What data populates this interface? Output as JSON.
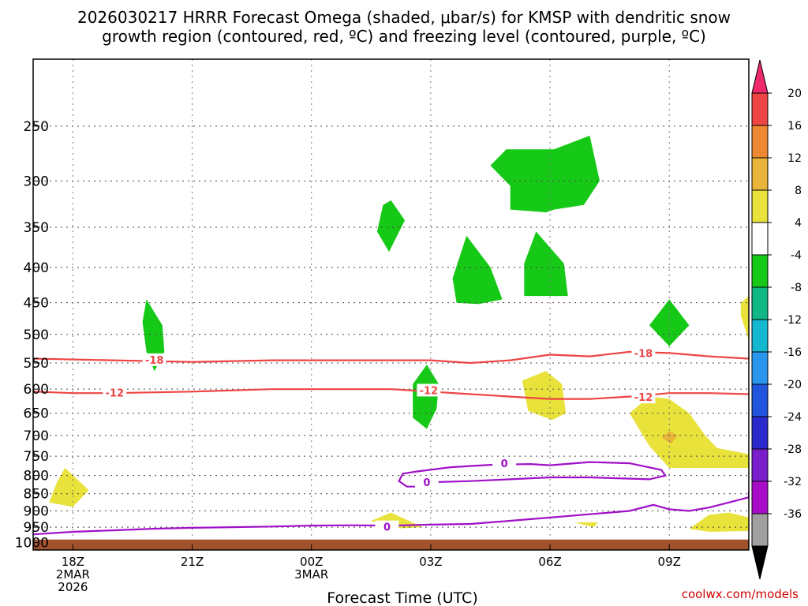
{
  "chart_data": {
    "type": "time-height cross-section",
    "title_line1": "2026030217 HRRR Forecast Omega (shaded, μbar/s) for KMSP with dendritic snow",
    "title_line2": "growth region (contoured, red, ºC) and freezing level (contoured, purple, ºC)",
    "xlabel": "Forecast Time (UTC)",
    "credit": "coolwx.com/models",
    "x_ticks": [
      {
        "hour": 0,
        "lines": [
          "18Z",
          "2MAR",
          "2026"
        ]
      },
      {
        "hour": 3,
        "lines": [
          "21Z"
        ]
      },
      {
        "hour": 6,
        "lines": [
          "00Z",
          "3MAR"
        ]
      },
      {
        "hour": 9,
        "lines": [
          "03Z"
        ]
      },
      {
        "hour": 12,
        "lines": [
          "06Z"
        ]
      },
      {
        "hour": 15,
        "lines": [
          "09Z"
        ]
      }
    ],
    "xlim_hours": [
      -1,
      17
    ],
    "y_ticks": [
      250,
      300,
      350,
      400,
      450,
      500,
      550,
      600,
      650,
      700,
      750,
      800,
      850,
      900,
      950,
      1000
    ],
    "ylim_hpa": [
      1025,
      200
    ],
    "colorbar": {
      "labels": [
        "20",
        "16",
        "12",
        "8",
        "4",
        "-4",
        "-8",
        "-12",
        "-16",
        "-20",
        "-24",
        "-28",
        "-32",
        "-36"
      ],
      "colors": [
        "#ee2a6a",
        "#ee4444",
        "#ee8833",
        "#e8b53a",
        "#e8e23a",
        "#ffffff",
        "#16c916",
        "#11b886",
        "#14b8d0",
        "#2a96ee",
        "#2255dd",
        "#2a2acc",
        "#7a1ecc",
        "#a80cc8",
        "#a0a0a0",
        "#000000"
      ]
    },
    "contours": [
      {
        "name": "-18",
        "color": "#ee4444",
        "label": "-18",
        "points": [
          [
            -1,
            542
          ],
          [
            1,
            545
          ],
          [
            3,
            548
          ],
          [
            5,
            545
          ],
          [
            7,
            545
          ],
          [
            9,
            545
          ],
          [
            10,
            550
          ],
          [
            11,
            545
          ],
          [
            12,
            535
          ],
          [
            13,
            538
          ],
          [
            14,
            530
          ],
          [
            15,
            532
          ],
          [
            16,
            538
          ],
          [
            17,
            542
          ]
        ],
        "labels_at": [
          [
            2.05,
            544
          ],
          [
            14.35,
            532
          ]
        ]
      },
      {
        "name": "-12",
        "color": "#ee4444",
        "label": "-12",
        "points": [
          [
            -1,
            605
          ],
          [
            0,
            608
          ],
          [
            1,
            608
          ],
          [
            3,
            605
          ],
          [
            5,
            600
          ],
          [
            7,
            600
          ],
          [
            8,
            600
          ],
          [
            9,
            605
          ],
          [
            10,
            610
          ],
          [
            11,
            615
          ],
          [
            12,
            620
          ],
          [
            13,
            620
          ],
          [
            14,
            615
          ],
          [
            15,
            608
          ],
          [
            16,
            608
          ],
          [
            17,
            610
          ]
        ],
        "labels_at": [
          [
            1.05,
            607
          ],
          [
            8.95,
            602
          ],
          [
            14.35,
            616
          ]
        ]
      },
      {
        "name": "freezing-upper",
        "color": "#a010c8",
        "label": "0",
        "points": [
          [
            8.6,
            790
          ],
          [
            9.5,
            778
          ],
          [
            10.5,
            772
          ],
          [
            11.5,
            770
          ],
          [
            12.0,
            773
          ],
          [
            13,
            765
          ],
          [
            14,
            768
          ],
          [
            14.8,
            785
          ],
          [
            14.9,
            800
          ],
          [
            14.5,
            810
          ],
          [
            13,
            805
          ],
          [
            12,
            805
          ],
          [
            11,
            810
          ],
          [
            10,
            815
          ],
          [
            9,
            818
          ],
          [
            8.7,
            830
          ],
          [
            8.4,
            830
          ],
          [
            8.2,
            815
          ],
          [
            8.3,
            795
          ],
          [
            8.6,
            790
          ]
        ],
        "labels_at": [
          [
            10.85,
            768
          ],
          [
            8.9,
            818
          ]
        ]
      },
      {
        "name": "freezing-lower",
        "color": "#a010c8",
        "label": "0",
        "points": [
          [
            -1,
            973
          ],
          [
            0,
            965
          ],
          [
            1,
            960
          ],
          [
            2,
            955
          ],
          [
            3,
            952
          ],
          [
            4,
            950
          ],
          [
            5,
            948
          ],
          [
            6,
            945
          ],
          [
            7,
            944
          ],
          [
            8,
            945
          ],
          [
            9,
            942
          ],
          [
            10,
            940
          ],
          [
            11,
            930
          ],
          [
            12,
            920
          ],
          [
            13,
            910
          ],
          [
            14,
            900
          ],
          [
            14.6,
            882
          ],
          [
            15,
            895
          ],
          [
            15.5,
            900
          ],
          [
            16,
            890
          ],
          [
            16.5,
            875
          ],
          [
            17,
            860
          ],
          [
            17,
            845
          ],
          [
            17.1,
            840
          ]
        ],
        "labels_at": [
          [
            7.9,
            949
          ]
        ]
      }
    ],
    "omega_regions": [
      {
        "name": "rising-1",
        "fill": "#16c916",
        "points": [
          [
            1.85,
            445
          ],
          [
            2.25,
            485
          ],
          [
            2.3,
            530
          ],
          [
            2.05,
            565
          ],
          [
            1.85,
            530
          ],
          [
            1.75,
            480
          ],
          [
            1.85,
            445
          ]
        ]
      },
      {
        "name": "rising-2",
        "fill": "#16c916",
        "points": [
          [
            8.0,
            320
          ],
          [
            8.35,
            342
          ],
          [
            7.95,
            380
          ],
          [
            7.65,
            355
          ],
          [
            7.8,
            325
          ],
          [
            8.0,
            320
          ]
        ]
      },
      {
        "name": "rising-3",
        "fill": "#16c916",
        "points": [
          [
            9.9,
            360
          ],
          [
            10.5,
            400
          ],
          [
            10.8,
            445
          ],
          [
            10.2,
            452
          ],
          [
            9.65,
            450
          ],
          [
            9.55,
            415
          ],
          [
            9.9,
            360
          ]
        ]
      },
      {
        "name": "rising-4",
        "fill": "#16c916",
        "points": [
          [
            11.65,
            355
          ],
          [
            12.35,
            395
          ],
          [
            12.45,
            440
          ],
          [
            11.35,
            440
          ],
          [
            11.35,
            395
          ],
          [
            11.65,
            355
          ]
        ]
      },
      {
        "name": "rising-5",
        "fill": "#16c916",
        "points": [
          [
            10.5,
            285
          ],
          [
            10.9,
            270
          ],
          [
            12.1,
            270
          ],
          [
            13.0,
            258
          ],
          [
            13.25,
            300
          ],
          [
            12.85,
            325
          ],
          [
            12.1,
            330
          ],
          [
            11.9,
            333
          ],
          [
            11.0,
            330
          ],
          [
            11.0,
            305
          ],
          [
            10.5,
            285
          ]
        ]
      },
      {
        "name": "rising-6",
        "fill": "#16c916",
        "points": [
          [
            15.0,
            445
          ],
          [
            15.5,
            485
          ],
          [
            15.0,
            520
          ],
          [
            14.5,
            485
          ],
          [
            15.0,
            445
          ]
        ]
      },
      {
        "name": "rising-7",
        "fill": "#16c916",
        "points": [
          [
            8.9,
            553
          ],
          [
            9.2,
            590
          ],
          [
            9.15,
            640
          ],
          [
            8.9,
            685
          ],
          [
            8.55,
            660
          ],
          [
            8.55,
            590
          ],
          [
            8.9,
            553
          ]
        ]
      },
      {
        "name": "sinking-1",
        "fill": "#e8e23a",
        "points": [
          [
            -0.2,
            780
          ],
          [
            0.4,
            840
          ],
          [
            0.0,
            888
          ],
          [
            -0.6,
            875
          ],
          [
            -0.4,
            818
          ],
          [
            -0.2,
            780
          ]
        ]
      },
      {
        "name": "sinking-2",
        "fill": "#e8e23a",
        "points": [
          [
            11.3,
            583
          ],
          [
            11.9,
            565
          ],
          [
            12.3,
            590
          ],
          [
            12.4,
            650
          ],
          [
            12.05,
            665
          ],
          [
            11.45,
            645
          ],
          [
            11.3,
            583
          ]
        ]
      },
      {
        "name": "sinking-3",
        "fill": "#e8e23a",
        "points": [
          [
            14.0,
            650
          ],
          [
            14.5,
            615
          ],
          [
            15.0,
            620
          ],
          [
            15.5,
            650
          ],
          [
            15.9,
            700
          ],
          [
            16.2,
            730
          ],
          [
            17.0,
            745
          ],
          [
            17.0,
            780
          ],
          [
            15.0,
            780
          ],
          [
            14.5,
            725
          ],
          [
            14.0,
            650
          ]
        ]
      },
      {
        "name": "sinking-4",
        "fill": "#e8e23a",
        "points": [
          [
            15.5,
            955
          ],
          [
            16,
            912
          ],
          [
            16.5,
            905
          ],
          [
            17.0,
            920
          ],
          [
            17.0,
            962
          ],
          [
            16.0,
            965
          ],
          [
            15.5,
            955
          ]
        ]
      },
      {
        "name": "sinking-5",
        "fill": "#e8e23a",
        "points": [
          [
            7.5,
            930
          ],
          [
            8.0,
            905
          ],
          [
            8.8,
            950
          ],
          [
            8.0,
            955
          ],
          [
            7.5,
            930
          ]
        ]
      },
      {
        "name": "sinking-6",
        "fill": "#e8e23a",
        "points": [
          [
            12.6,
            935
          ],
          [
            13.2,
            935
          ],
          [
            13.1,
            950
          ],
          [
            12.6,
            935
          ]
        ]
      },
      {
        "name": "sinking-7",
        "fill": "#e8e23a",
        "points": [
          [
            16.8,
            450
          ],
          [
            17.0,
            440
          ],
          [
            17.0,
            510
          ],
          [
            16.8,
            470
          ],
          [
            16.8,
            450
          ]
        ]
      },
      {
        "name": "sinking-8",
        "fill": "#e8b53a",
        "points": [
          [
            15.0,
            690
          ],
          [
            15.2,
            700
          ],
          [
            15.05,
            720
          ],
          [
            14.8,
            705
          ],
          [
            15.0,
            690
          ]
        ]
      }
    ],
    "ground_pressure_hpa": 990,
    "ground_color": "#a0522d"
  }
}
